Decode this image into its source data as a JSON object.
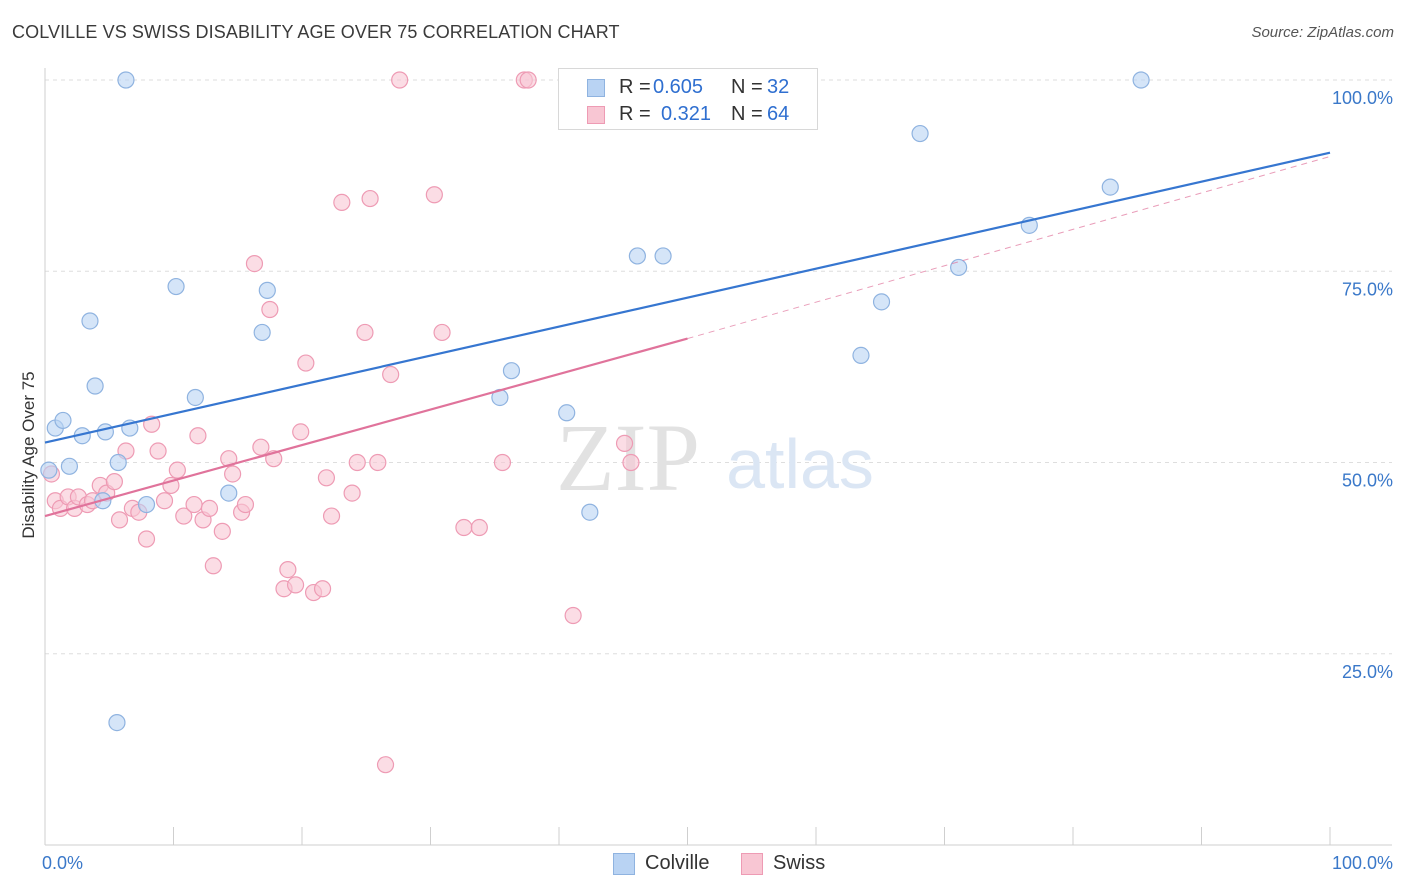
{
  "header": {
    "title": "COLVILLE VS SWISS DISABILITY AGE OVER 75 CORRELATION CHART",
    "source": "Source: ZipAtlas.com"
  },
  "legend": {
    "r_label": "R =",
    "n_label": "N =",
    "rows": [
      {
        "r": "0.605",
        "n": "32"
      },
      {
        "r": "0.321",
        "n": "64"
      }
    ]
  },
  "bottom_legend": [
    {
      "label": "Colville"
    },
    {
      "label": "Swiss"
    }
  ],
  "watermark": {
    "zip": "ZIP",
    "atlas": "atlas"
  },
  "colors": {
    "colville_fill": "#b9d3f3",
    "colville_stroke": "#8fb3e0",
    "colville_line": "#3676d0",
    "swiss_fill": "#f8c6d3",
    "swiss_stroke": "#ee9bb4",
    "swiss_line": "#e0739b",
    "tick_label": "#3a78c9"
  },
  "chart_data": {
    "type": "scatter",
    "title": "COLVILLE VS SWISS DISABILITY AGE OVER 75 CORRELATION CHART",
    "xlabel": "",
    "ylabel": "Disability Age Over 75",
    "xlim": [
      0,
      100
    ],
    "ylim": [
      0,
      105
    ],
    "x_tick_labels": [
      {
        "value": 0,
        "label": "0.0%"
      },
      {
        "value": 100,
        "label": "100.0%"
      }
    ],
    "y_tick_labels": [
      {
        "value": 25,
        "label": "25.0%"
      },
      {
        "value": 50,
        "label": "50.0%"
      },
      {
        "value": 75,
        "label": "75.0%"
      },
      {
        "value": 100,
        "label": "100.0%"
      }
    ],
    "series": [
      {
        "name": "Colville",
        "r": 0.605,
        "n": 32,
        "trend": {
          "x0": 0,
          "y0": 52.6,
          "x1": 100,
          "y1": 90.5
        },
        "points": [
          [
            0.3,
            49
          ],
          [
            0.8,
            54.5
          ],
          [
            1.4,
            55.5
          ],
          [
            1.9,
            49.5
          ],
          [
            2.9,
            53.5
          ],
          [
            3.5,
            68.5
          ],
          [
            3.9,
            60
          ],
          [
            4.5,
            45
          ],
          [
            4.7,
            54
          ],
          [
            5.7,
            50
          ],
          [
            5.6,
            16
          ],
          [
            6.3,
            100
          ],
          [
            6.6,
            54.5
          ],
          [
            7.9,
            44.5
          ],
          [
            10.2,
            73
          ],
          [
            11.7,
            58.5
          ],
          [
            14.3,
            46
          ],
          [
            16.9,
            67
          ],
          [
            17.3,
            72.5
          ],
          [
            35.4,
            58.5
          ],
          [
            36.3,
            62
          ],
          [
            40.6,
            56.5
          ],
          [
            42.4,
            43.5
          ],
          [
            46.1,
            77
          ],
          [
            48.1,
            77
          ],
          [
            63.5,
            64
          ],
          [
            65.1,
            71
          ],
          [
            68.1,
            93
          ],
          [
            71.1,
            75.5
          ],
          [
            76.6,
            81
          ],
          [
            82.9,
            86
          ],
          [
            85.3,
            100
          ]
        ]
      },
      {
        "name": "Swiss",
        "r": 0.321,
        "n": 64,
        "trend": {
          "x0": 0,
          "y0": 43,
          "x1": 50,
          "y1": 66.2
        },
        "trend_dashed": {
          "x0": 50,
          "y0": 66.2,
          "x1": 100,
          "y1": 90
        },
        "points": [
          [
            0.5,
            48.5
          ],
          [
            0.8,
            45
          ],
          [
            1.2,
            44
          ],
          [
            1.8,
            45.5
          ],
          [
            2.3,
            44
          ],
          [
            2.6,
            45.5
          ],
          [
            3.3,
            44.5
          ],
          [
            3.7,
            45
          ],
          [
            4.3,
            47
          ],
          [
            4.8,
            46
          ],
          [
            5.4,
            47.5
          ],
          [
            5.8,
            42.5
          ],
          [
            6.3,
            51.5
          ],
          [
            6.8,
            44
          ],
          [
            7.3,
            43.5
          ],
          [
            7.9,
            40
          ],
          [
            8.3,
            55
          ],
          [
            8.8,
            51.5
          ],
          [
            9.3,
            45
          ],
          [
            9.8,
            47
          ],
          [
            10.3,
            49
          ],
          [
            10.8,
            43
          ],
          [
            11.6,
            44.5
          ],
          [
            11.9,
            53.5
          ],
          [
            12.3,
            42.5
          ],
          [
            12.8,
            44
          ],
          [
            13.1,
            36.5
          ],
          [
            13.8,
            41
          ],
          [
            14.3,
            50.5
          ],
          [
            14.6,
            48.5
          ],
          [
            15.3,
            43.5
          ],
          [
            15.6,
            44.5
          ],
          [
            16.3,
            76
          ],
          [
            16.8,
            52
          ],
          [
            17.5,
            70
          ],
          [
            17.8,
            50.5
          ],
          [
            18.6,
            33.5
          ],
          [
            18.9,
            36
          ],
          [
            19.5,
            34
          ],
          [
            19.9,
            54
          ],
          [
            20.3,
            63
          ],
          [
            20.9,
            33
          ],
          [
            21.6,
            33.5
          ],
          [
            21.9,
            48
          ],
          [
            22.3,
            43
          ],
          [
            23.1,
            84
          ],
          [
            23.9,
            46
          ],
          [
            24.3,
            50
          ],
          [
            24.9,
            67
          ],
          [
            25.3,
            84.5
          ],
          [
            25.9,
            50
          ],
          [
            26.5,
            10.5
          ],
          [
            26.9,
            61.5
          ],
          [
            27.6,
            100
          ],
          [
            30.3,
            85
          ],
          [
            30.9,
            67
          ],
          [
            32.6,
            41.5
          ],
          [
            33.8,
            41.5
          ],
          [
            35.6,
            50
          ],
          [
            37.3,
            100
          ],
          [
            37.6,
            100
          ],
          [
            41.1,
            30
          ],
          [
            45.1,
            52.5
          ],
          [
            45.6,
            50
          ]
        ]
      }
    ]
  }
}
